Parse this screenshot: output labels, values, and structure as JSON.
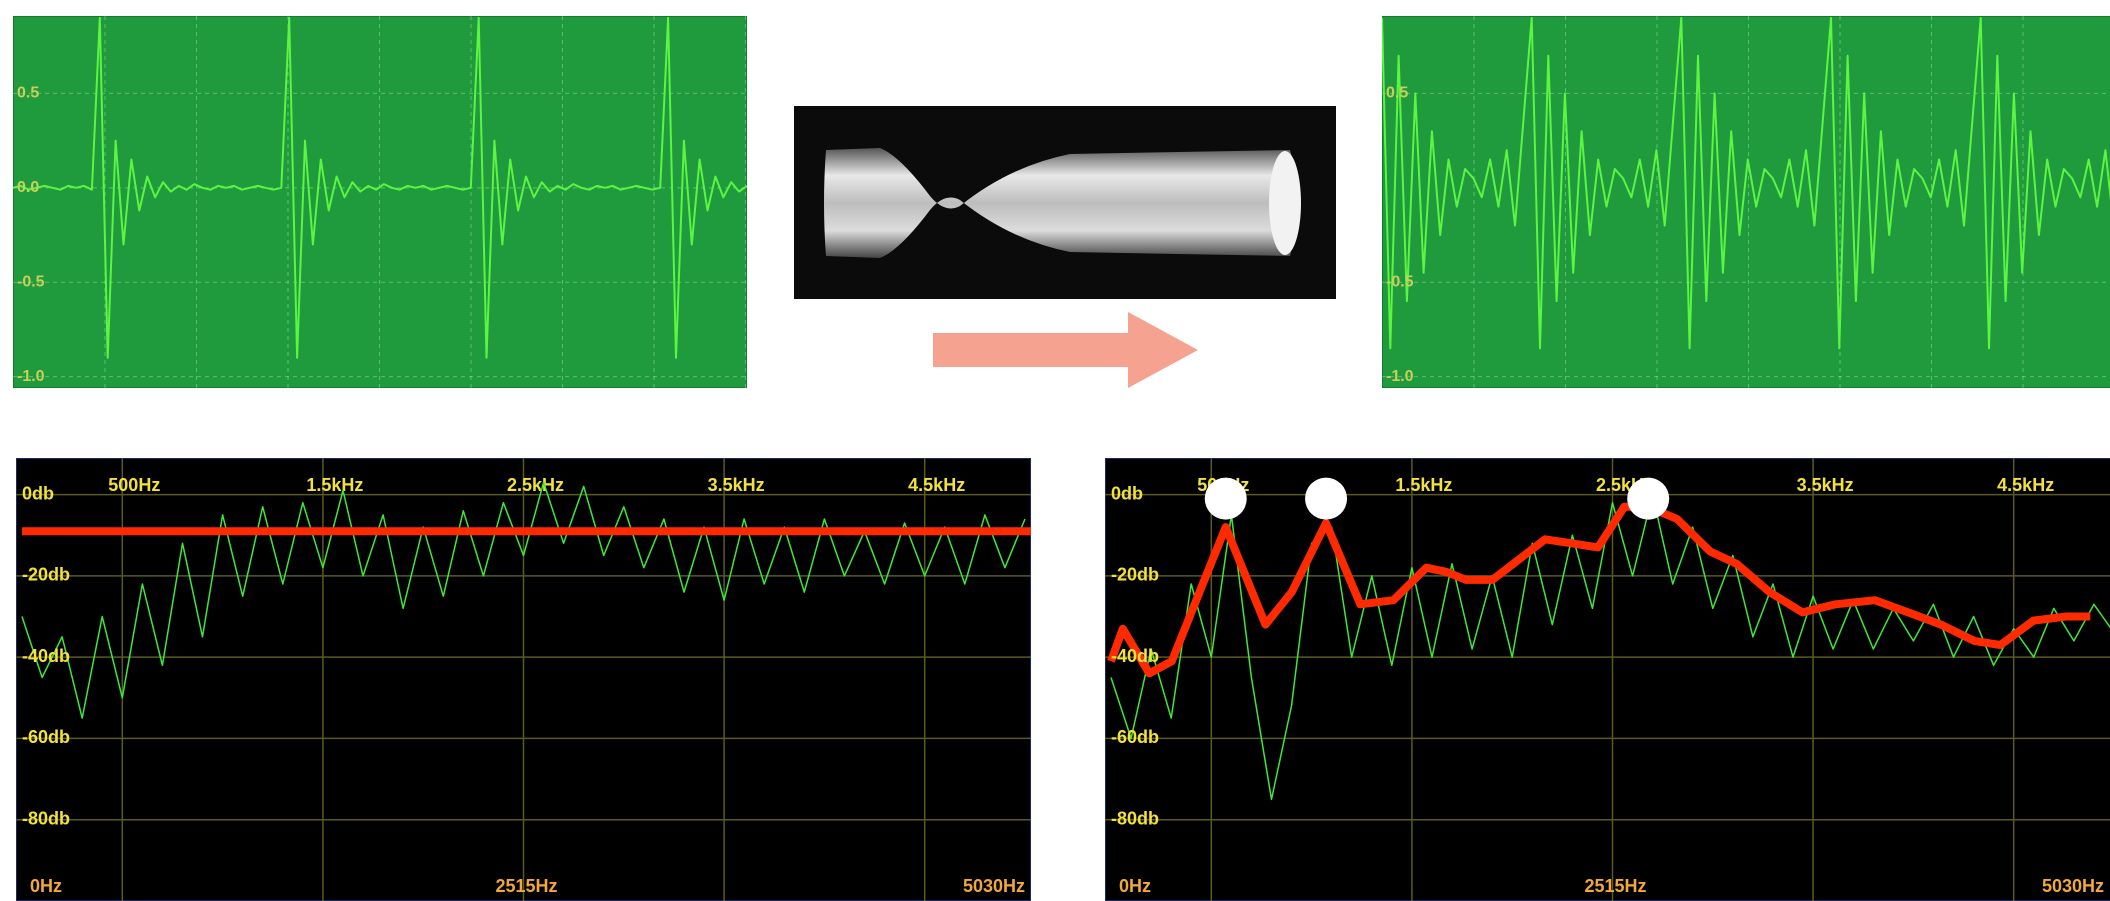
{
  "chart_data": [
    {
      "type": "line",
      "background": "#1f9a3d",
      "color": "#5cf542",
      "tick_color": "#c9cf5a",
      "ylim": [
        -1.06,
        0.91
      ],
      "yticks": [
        0.5,
        {
          "value": 0,
          "label": "0.0"
        },
        -0.5,
        {
          "value": -1,
          "label": "-1.0"
        }
      ],
      "values": [
        0,
        0.01,
        -0.01,
        0,
        0.01,
        0,
        -0.01,
        0.01,
        0,
        0.01,
        -0.01,
        0.9,
        -0.9,
        0.25,
        -0.3,
        0.15,
        -0.12,
        0.06,
        -0.05,
        0.03,
        -0.02,
        0.01,
        -0.01,
        0.02,
        0,
        -0.01,
        0.01,
        0,
        0.01,
        -0.01,
        0,
        0.01,
        0,
        -0.01,
        0,
        0.9,
        -0.9,
        0.25,
        -0.3,
        0.15,
        -0.12,
        0.06,
        -0.05,
        0.03,
        -0.02,
        0.01,
        -0.01,
        0.02,
        0,
        -0.01,
        0.01,
        0,
        0.01,
        -0.01,
        0,
        0.01,
        0,
        -0.01,
        0,
        0.9,
        -0.9,
        0.25,
        -0.3,
        0.15,
        -0.12,
        0.06,
        -0.05,
        0.03,
        -0.02,
        0.01,
        -0.01,
        0.02,
        0,
        -0.01,
        0.01,
        0,
        0.01,
        -0.01,
        0,
        0.01,
        0,
        -0.01,
        0,
        0.9,
        -0.9,
        0.25,
        -0.3,
        0.15,
        -0.12,
        0.06,
        -0.05,
        0.03,
        -0.02,
        0.01
      ]
    },
    {
      "type": "line",
      "background": "#1f9a3d",
      "color": "#5cf542",
      "tick_color": "#c9cf5a",
      "ylim": [
        -1.06,
        0.91
      ],
      "yticks": [
        0.5,
        -0.5,
        {
          "value": -1,
          "label": "-1.0"
        }
      ],
      "values": [
        0.9,
        -0.85,
        0.7,
        -0.6,
        0.5,
        -0.45,
        0.3,
        -0.25,
        0.15,
        -0.1,
        0.1,
        0.05,
        -0.05,
        0.15,
        -0.1,
        0.2,
        -0.2,
        0.35,
        0.9,
        -0.85,
        0.7,
        -0.6,
        0.5,
        -0.45,
        0.3,
        -0.25,
        0.15,
        -0.1,
        0.1,
        0.05,
        -0.05,
        0.15,
        -0.1,
        0.2,
        -0.2,
        0.35,
        0.9,
        -0.85,
        0.7,
        -0.6,
        0.5,
        -0.45,
        0.3,
        -0.25,
        0.15,
        -0.1,
        0.1,
        0.05,
        -0.05,
        0.15,
        -0.1,
        0.2,
        -0.2,
        0.35,
        0.9,
        -0.85,
        0.7,
        -0.6,
        0.5,
        -0.45,
        0.3,
        -0.25,
        0.15,
        -0.1,
        0.1,
        0.05,
        -0.05,
        0.15,
        -0.1,
        0.2,
        -0.2,
        0.35,
        0.9,
        -0.85,
        0.7,
        -0.6,
        0.5,
        -0.45,
        0.3,
        -0.25,
        0.15,
        -0.1,
        0.1,
        0.05,
        -0.05,
        0.15,
        -0.1,
        0.2,
        -0.2,
        0.35
      ]
    },
    {
      "type": "line",
      "background": "#000000",
      "tick_color": "#f2e23a",
      "xtick_color": "#f2a83a",
      "xlim": [
        0,
        5030
      ],
      "ylim": [
        -100,
        9
      ],
      "yticks": [
        {
          "value": 0,
          "label": "0db"
        },
        {
          "value": -20,
          "label": "-20db"
        },
        {
          "value": -40,
          "label": "-40db"
        },
        {
          "value": -60,
          "label": "-60db"
        },
        {
          "value": -80,
          "label": "-80db"
        }
      ],
      "xticks": [
        {
          "value": 0,
          "label": "0Hz"
        },
        {
          "value": 2515,
          "label": "2515Hz"
        },
        {
          "value": 5030,
          "label": "5030Hz"
        }
      ],
      "x2ticks": [
        {
          "value": 500,
          "label": "500Hz"
        },
        {
          "value": 1500,
          "label": "1.5kHz"
        },
        {
          "value": 2500,
          "label": "2.5kHz"
        },
        {
          "value": 3500,
          "label": "3.5kHz"
        },
        {
          "value": 4500,
          "label": "4.5kHz"
        }
      ],
      "series": [
        {
          "type": "line",
          "color": "#3ee83a",
          "linewidth": 1.5,
          "x": [
            0,
            100,
            200,
            300,
            400,
            500,
            600,
            700,
            800,
            900,
            1000,
            1100,
            1200,
            1300,
            1400,
            1500,
            1600,
            1700,
            1800,
            1900,
            2000,
            2100,
            2200,
            2300,
            2400,
            2500,
            2600,
            2700,
            2800,
            2900,
            3000,
            3100,
            3200,
            3300,
            3400,
            3500,
            3600,
            3700,
            3800,
            3900,
            4000,
            4100,
            4200,
            4300,
            4400,
            4500,
            4600,
            4700,
            4800,
            4900,
            5000
          ],
          "values": [
            -30,
            -45,
            -35,
            -55,
            -30,
            -50,
            -22,
            -42,
            -12,
            -35,
            -5,
            -25,
            -3,
            -22,
            -2,
            -18,
            1,
            -20,
            -5,
            -28,
            -8,
            -25,
            -4,
            -20,
            -2,
            -15,
            3,
            -12,
            2,
            -15,
            -3,
            -18,
            -6,
            -24,
            -8,
            -26,
            -6,
            -22,
            -8,
            -24,
            -6,
            -20,
            -9,
            -22,
            -7,
            -20,
            -8,
            -22,
            -5,
            -18,
            -6
          ]
        },
        {
          "type": "line",
          "color": "#ff2a00",
          "linewidth": 8,
          "x": [
            0,
            5030
          ],
          "values": [
            -9,
            -9
          ]
        }
      ]
    },
    {
      "type": "line",
      "background": "#000000",
      "tick_color": "#f2e23a",
      "xtick_color": "#f2a83a",
      "xlim": [
        0,
        5030
      ],
      "ylim": [
        -100,
        9
      ],
      "yticks": [
        {
          "value": 0,
          "label": "0db"
        },
        {
          "value": -20,
          "label": "-20db"
        },
        {
          "value": -40,
          "label": "-40db"
        },
        {
          "value": -60,
          "label": "-60db"
        },
        {
          "value": -80,
          "label": "-80db"
        }
      ],
      "xticks": [
        {
          "value": 0,
          "label": "0Hz"
        },
        {
          "value": 2515,
          "label": "2515Hz"
        },
        {
          "value": 5030,
          "label": "5030Hz"
        }
      ],
      "x2ticks": [
        {
          "value": 500,
          "label": "500Hz"
        },
        {
          "value": 1500,
          "label": "1.5kHz"
        },
        {
          "value": 2500,
          "label": "2.5kHz"
        },
        {
          "value": 3500,
          "label": "3.5kHz"
        },
        {
          "value": 4500,
          "label": "4.5kHz"
        }
      ],
      "series": [
        {
          "type": "line",
          "color": "#3ee83a",
          "linewidth": 1.5,
          "x": [
            0,
            100,
            200,
            300,
            400,
            500,
            600,
            700,
            800,
            900,
            1000,
            1100,
            1200,
            1300,
            1400,
            1500,
            1600,
            1700,
            1800,
            1900,
            2000,
            2100,
            2200,
            2300,
            2400,
            2500,
            2600,
            2700,
            2800,
            2900,
            3000,
            3100,
            3200,
            3300,
            3400,
            3500,
            3600,
            3700,
            3800,
            3900,
            4000,
            4100,
            4200,
            4300,
            4400,
            4500,
            4600,
            4700,
            4800,
            4900,
            5000
          ],
          "values": [
            -45,
            -60,
            -38,
            -55,
            -22,
            -40,
            -5,
            -45,
            -75,
            -52,
            -12,
            -8,
            -40,
            -20,
            -42,
            -18,
            -40,
            -17,
            -38,
            -20,
            -40,
            -12,
            -32,
            -10,
            -28,
            -2,
            -20,
            0,
            -22,
            -8,
            -28,
            -15,
            -35,
            -22,
            -40,
            -25,
            -38,
            -26,
            -38,
            -28,
            -36,
            -27,
            -40,
            -30,
            -42,
            -33,
            -40,
            -28,
            -36,
            -27,
            -34
          ]
        },
        {
          "type": "line",
          "color": "#ff2a00",
          "linewidth": 8,
          "x": [
            0,
            59,
            191,
            303,
            441,
            572,
            770,
            901,
            1072,
            1243,
            1408,
            1572,
            1671,
            1770,
            1901,
            2033,
            2164,
            2296,
            2428,
            2559,
            2678,
            2822,
            2987,
            3118,
            3283,
            3447,
            3612,
            3809,
            3974,
            4138,
            4303,
            4434,
            4599,
            4763,
            4882
          ],
          "values": [
            -41,
            -33,
            -44,
            -41,
            -24,
            -8,
            -32,
            -24,
            -7,
            -27,
            -26,
            -18,
            -19,
            -21,
            -21,
            -16,
            -11,
            -12,
            -13,
            -3,
            -3,
            -6,
            -14,
            -17,
            -24,
            -29,
            -27,
            -26,
            -29,
            -32,
            -36,
            -37,
            -31,
            -30,
            -30
          ]
        },
        {
          "type": "scatter",
          "color": "#ffffff",
          "x": [
            572,
            1072,
            2678
          ],
          "values": [
            -1,
            -1,
            -1
          ]
        }
      ]
    }
  ]
}
